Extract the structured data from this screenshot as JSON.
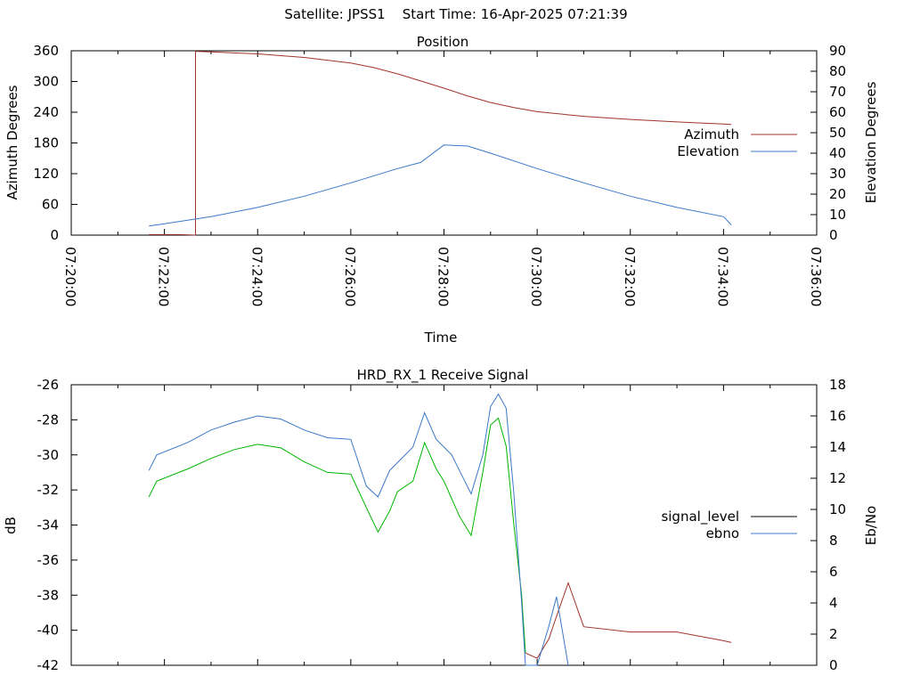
{
  "header": {
    "satellite": "Satellite: JPSS1",
    "start_time": "Start Time: 16-Apr-2025 07:21:39"
  },
  "colors": {
    "azimuth": "#a0322d",
    "elevation": "#3c78c8",
    "signal_level": "#000000",
    "ebno": "#3c78c8",
    "signal_trace_green": "#00b400",
    "signal_trace_red": "#a0322d"
  },
  "chart_data": [
    {
      "type": "line",
      "title": "Position",
      "xlabel": "Time",
      "ylabel": "Azimuth Degrees",
      "y2label": "Elevation Degrees",
      "x_ticks": [
        "07:20:00",
        "07:22:00",
        "07:24:00",
        "07:26:00",
        "07:28:00",
        "07:30:00",
        "07:32:00",
        "07:34:00",
        "07:36:00"
      ],
      "ylim": [
        0,
        360
      ],
      "y_ticks": [
        0,
        60,
        120,
        180,
        240,
        300,
        360
      ],
      "y2lim": [
        0,
        90
      ],
      "y2_ticks": [
        0,
        10,
        20,
        30,
        40,
        50,
        60,
        70,
        80,
        90
      ],
      "legend_position": "right",
      "series": [
        {
          "name": "Azimuth",
          "axis": "left",
          "x": [
            "07:21:40",
            "07:22:20",
            "07:22:40",
            "07:22:40",
            "07:22:40",
            "07:23:00",
            "07:24:00",
            "07:25:00",
            "07:26:00",
            "07:26:30",
            "07:27:00",
            "07:27:30",
            "07:28:00",
            "07:28:30",
            "07:29:00",
            "07:29:30",
            "07:30:00",
            "07:31:00",
            "07:32:00",
            "07:33:00",
            "07:34:00",
            "07:34:10"
          ],
          "y": [
            1,
            1,
            0,
            360,
            359,
            358,
            354,
            347,
            336,
            327,
            315,
            301,
            287,
            272,
            259,
            249,
            241,
            232,
            226,
            221,
            217,
            216
          ]
        },
        {
          "name": "Elevation",
          "axis": "right",
          "x": [
            "07:21:40",
            "07:22:00",
            "07:23:00",
            "07:24:00",
            "07:25:00",
            "07:26:00",
            "07:27:00",
            "07:27:30",
            "07:28:00",
            "07:28:30",
            "07:29:00",
            "07:30:00",
            "07:31:00",
            "07:32:00",
            "07:33:00",
            "07:34:00",
            "07:34:10"
          ],
          "y": [
            4.5,
            5.5,
            9,
            13.5,
            19,
            25.5,
            32.5,
            35.5,
            44,
            43.5,
            40,
            32.5,
            25.5,
            19,
            13.5,
            9,
            5
          ]
        }
      ]
    },
    {
      "type": "line",
      "title": "HRD_RX_1 Receive Signal",
      "ylabel": "dB",
      "y2label": "Eb/No",
      "x_range": [
        "07:20:00",
        "07:36:00"
      ],
      "ylim": [
        -42,
        -26
      ],
      "y_ticks": [
        -42,
        -40,
        -38,
        -36,
        -34,
        -32,
        -30,
        -28,
        -26
      ],
      "y2lim": [
        0,
        18
      ],
      "y2_ticks": [
        0,
        2,
        4,
        6,
        8,
        10,
        12,
        14,
        16,
        18
      ],
      "legend_position": "right",
      "series": [
        {
          "name": "signal_level",
          "axis": "left",
          "x": [
            "07:21:40",
            "07:21:50",
            "07:22:30",
            "07:23:00",
            "07:23:30",
            "07:24:00",
            "07:24:30",
            "07:25:00",
            "07:25:30",
            "07:26:00",
            "07:26:20",
            "07:26:35",
            "07:26:50",
            "07:27:00",
            "07:27:20",
            "07:27:35",
            "07:27:50",
            "07:28:00",
            "07:28:10",
            "07:28:20",
            "07:28:35",
            "07:28:50",
            "07:29:00",
            "07:29:10",
            "07:29:20",
            "07:29:30",
            "07:29:40",
            "07:29:45",
            "07:30:00",
            "07:30:15",
            "07:30:25",
            "07:30:40",
            "07:31:00",
            "07:32:00",
            "07:33:00",
            "07:34:00",
            "07:34:10"
          ],
          "y": [
            -32.4,
            -31.5,
            -30.8,
            -30.2,
            -29.7,
            -29.4,
            -29.6,
            -30.4,
            -31.0,
            -31.1,
            -33.0,
            -34.4,
            -33.2,
            -32.1,
            -31.5,
            -29.3,
            -30.8,
            -31.5,
            -32.5,
            -33.5,
            -34.6,
            -31.0,
            -28.3,
            -27.9,
            -29.5,
            -34.0,
            -38.0,
            -41.3,
            -41.6,
            -40.5,
            -39.2,
            -37.3,
            -39.8,
            -40.1,
            -40.1,
            -40.6,
            -40.7
          ]
        },
        {
          "name": "ebno",
          "axis": "right",
          "x": [
            "07:21:40",
            "07:21:50",
            "07:22:30",
            "07:23:00",
            "07:23:30",
            "07:24:00",
            "07:24:30",
            "07:25:00",
            "07:25:30",
            "07:26:00",
            "07:26:20",
            "07:26:35",
            "07:26:50",
            "07:27:00",
            "07:27:20",
            "07:27:35",
            "07:27:50",
            "07:28:00",
            "07:28:10",
            "07:28:20",
            "07:28:35",
            "07:28:50",
            "07:29:00",
            "07:29:10",
            "07:29:20",
            "07:29:30",
            "07:29:40",
            "07:29:45",
            "07:30:00",
            "07:30:15",
            "07:30:25",
            "07:30:40"
          ],
          "y": [
            12.5,
            13.5,
            14.3,
            15.1,
            15.6,
            16.0,
            15.8,
            15.1,
            14.6,
            14.5,
            11.5,
            10.8,
            12.5,
            13.0,
            14.0,
            16.2,
            14.5,
            14.0,
            13.5,
            12.5,
            11.0,
            13.5,
            16.6,
            17.4,
            16.5,
            11.0,
            4.0,
            0.0,
            0.0,
            2.5,
            4.4,
            0.0
          ]
        }
      ]
    }
  ]
}
